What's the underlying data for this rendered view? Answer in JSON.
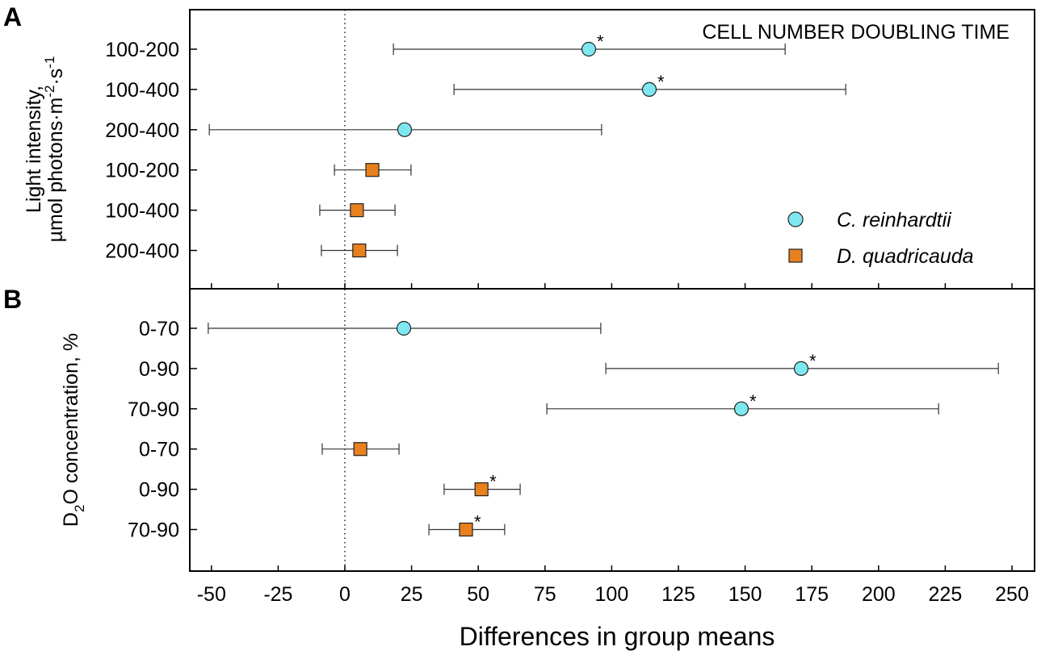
{
  "chart_data": {
    "type": "scatter",
    "subtype": "forest-plot with confidence intervals",
    "xlabel": "Differences in group means",
    "xlim": [
      -55,
      257
    ],
    "xticks": [
      -50,
      -25,
      0,
      25,
      50,
      75,
      100,
      125,
      150,
      175,
      200,
      225,
      250
    ],
    "reference_line": 0,
    "colors": {
      "C. reinhardtii": "#7ee8f0",
      "D. quadricauda": "#e8801e"
    },
    "legend": {
      "placement": "bottom-right of panel A",
      "entries": [
        {
          "label": "C. reinhardtii",
          "marker": "circle",
          "color": "#7ee8f0"
        },
        {
          "label": "D. quadricauda",
          "marker": "square",
          "color": "#e8801e"
        }
      ]
    },
    "panels": [
      {
        "letter": "A",
        "title": "CELL NUMBER DOUBLING TIME",
        "ylabel_line1": "Light intensity,",
        "ylabel_line2": "µmol photons·m",
        "ylabel_sup1": "-2",
        "ylabel_dot": "·s",
        "ylabel_sup2": "-1",
        "rows": [
          {
            "label": "100-200",
            "species": "C. reinhardtii",
            "mean": 91.4,
            "low": 18.2,
            "high": 165.0,
            "significant": true
          },
          {
            "label": "100-400",
            "species": "C. reinhardtii",
            "mean": 114.1,
            "low": 40.9,
            "high": 187.7,
            "significant": true
          },
          {
            "label": "200-400",
            "species": "C. reinhardtii",
            "mean": 22.4,
            "low": -50.8,
            "high": 96.2,
            "significant": false
          },
          {
            "label": "100-200",
            "species": "D. quadricauda",
            "mean": 10.3,
            "low": -3.9,
            "high": 24.8,
            "significant": false
          },
          {
            "label": "100-400",
            "species": "D. quadricauda",
            "mean": 4.5,
            "low": -9.4,
            "high": 18.8,
            "significant": false
          },
          {
            "label": "200-400",
            "species": "D. quadricauda",
            "mean": 5.4,
            "low": -8.8,
            "high": 19.7,
            "significant": false
          }
        ]
      },
      {
        "letter": "B",
        "title": "",
        "ylabel_line1": "D",
        "ylabel_sub": "2",
        "ylabel_rest": "O concentration, %",
        "rows": [
          {
            "label": "0-70",
            "species": "C. reinhardtii",
            "mean": 22.1,
            "low": -51.2,
            "high": 95.9,
            "significant": false
          },
          {
            "label": "0-90",
            "species": "C. reinhardtii",
            "mean": 171.0,
            "low": 97.8,
            "high": 244.9,
            "significant": true
          },
          {
            "label": "70-90",
            "species": "C. reinhardtii",
            "mean": 148.6,
            "low": 75.7,
            "high": 222.5,
            "significant": true
          },
          {
            "label": "0-70",
            "species": "D. quadricauda",
            "mean": 5.8,
            "low": -8.5,
            "high": 20.3,
            "significant": false
          },
          {
            "label": "0-90",
            "species": "D. quadricauda",
            "mean": 51.2,
            "low": 37.2,
            "high": 65.7,
            "significant": true
          },
          {
            "label": "70-90",
            "species": "D. quadricauda",
            "mean": 45.4,
            "low": 31.5,
            "high": 59.9,
            "significant": true
          }
        ]
      }
    ],
    "significance_marker": "*"
  }
}
